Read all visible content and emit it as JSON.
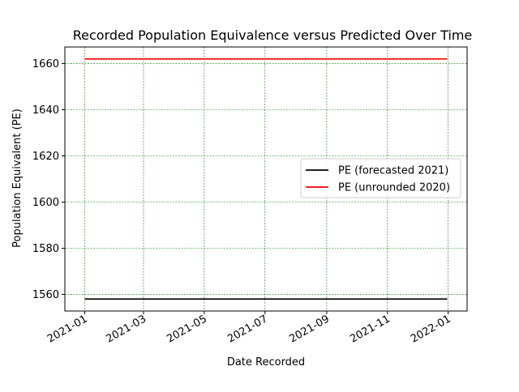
{
  "chart_data": {
    "type": "line",
    "title": "Recorded Population Equivalence versus Predicted Over Time",
    "xlabel": "Date Recorded",
    "ylabel": "Population Equivalent (PE)",
    "x_ticks": [
      "2021-01",
      "2021-03",
      "2021-05",
      "2021-07",
      "2021-09",
      "2021-11",
      "2022-01"
    ],
    "x_tick_dates": [
      "2021-01-01",
      "2021-03-01",
      "2021-05-01",
      "2021-07-01",
      "2021-09-01",
      "2021-11-01",
      "2022-01-01"
    ],
    "xlim": [
      "2020-12-12",
      "2022-01-20"
    ],
    "y_ticks": [
      1560,
      1580,
      1600,
      1620,
      1640,
      1660
    ],
    "ylim": [
      1552.8,
      1667.2
    ],
    "grid": true,
    "grid_color": "#008000",
    "legend_placement": "center-right",
    "series": [
      {
        "name": "PE (forecasted 2021)",
        "color": "#000000",
        "x": [
          "2021-01-01",
          "2021-12-31"
        ],
        "y": [
          1558,
          1558
        ]
      },
      {
        "name": "PE (unrounded 2020)",
        "color": "#ff0000",
        "x": [
          "2021-01-01",
          "2021-12-31"
        ],
        "y": [
          1662,
          1662
        ]
      }
    ]
  }
}
